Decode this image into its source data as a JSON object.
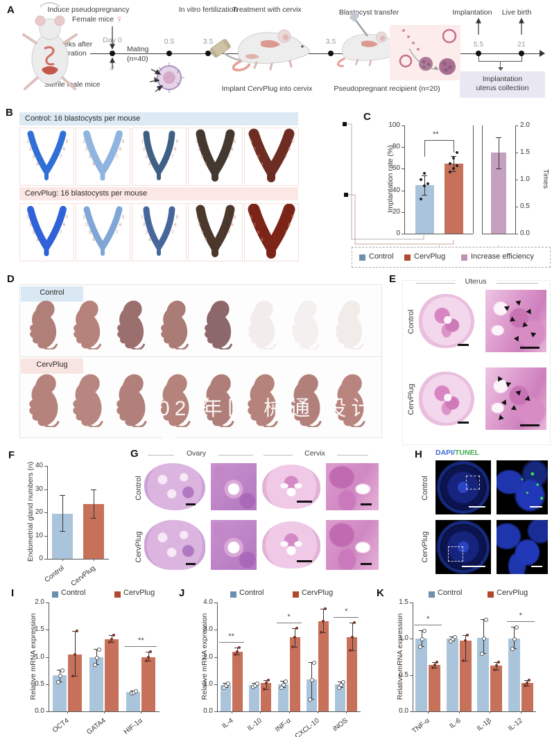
{
  "panels": {
    "A": "A",
    "B": "B",
    "C": "C",
    "D": "D",
    "E": "E",
    "F": "F",
    "G": "G",
    "H": "H",
    "I": "I",
    "J": "J",
    "K": "K"
  },
  "colors": {
    "control_bar": "#aac5db",
    "cervplug_bar": "#c8715a",
    "increase_bar": "#c6a0bf",
    "control_marker": "#6d8fae",
    "cervplug_marker": "#b0482e",
    "increase_marker": "#bd93b4",
    "header_blue": "#ddeaf3",
    "header_pink": "#fbe7e3",
    "dapi_blue": "#3f6ad1",
    "tunel_green": "#3cae4e"
  },
  "panelA": {
    "stages": {
      "s1": "Induce pseudopregnancy",
      "s2": "In vitro fertilization",
      "s3": "Treatment with cervix",
      "s4": "Blastocyst transfer",
      "s5": "Implantation",
      "s6": "Live birth"
    },
    "timeline": {
      "day0": "Day 0",
      "t1": "0.5",
      "t2": "3.5",
      "t3": "3.5",
      "t4": "5.5",
      "t5": "21"
    },
    "labels": {
      "female_mice": "Female mice",
      "female_symbol": "♀",
      "castration_l1": "2 weeks after",
      "castration_l2": "castration",
      "male_symbol": "♂",
      "sterile": "Sterile male mice",
      "mating_l1": "Mating",
      "mating_l2": "(n=40)",
      "implant": "Implant CervPlug into cervix",
      "recipient": "Pseudopregnant recipient (n=20)",
      "collection_l1": "Implantation",
      "collection_l2": "uterus collection"
    }
  },
  "panelB": {
    "control_header": "Control: 16 blastocysts per mouse",
    "cervplug_header": "CervPlug: 16 blastocysts per mouse",
    "uterus_colors_control": [
      "#2f6fd6",
      "#8fb4e0",
      "#3f5f84",
      "#433931",
      "#6e2d22"
    ],
    "uterus_colors_cervplug": [
      "#2f62d8",
      "#7fa6d6",
      "#47679c",
      "#4a382c",
      "#7c2418"
    ]
  },
  "panelD": {
    "control_label": "Control",
    "cervplug_label": "CervPlug",
    "pup_colors_control": [
      "#b08078",
      "#b5837b",
      "#9a6f6d",
      "#ab7b75",
      "#8d686a",
      "#f2edec",
      "#f4f0ef",
      "#f1ecea"
    ],
    "pup_colors_cervplug": [
      "#b5837c",
      "#b88680",
      "#b2807a",
      "#b5837c",
      "#b07e78",
      "#b5837c",
      "#b2807a",
      "#b8847d"
    ],
    "watermark": "02 年医 械通 设计 三"
  },
  "panelE": {
    "title": "Uterus",
    "row1": "Control",
    "row2": "CervPlug"
  },
  "panelG": {
    "col1": "Ovary",
    "col2": "Cervix",
    "row1": "Control",
    "row2": "CervPlug"
  },
  "panelH": {
    "title_dapi": "DAPI",
    "title_slash": "/",
    "title_tunel": "TUNEL",
    "row1": "Control",
    "row2": "CervPlug"
  },
  "chart_data": [
    {
      "id": "C",
      "type": "bar",
      "ylabel": "Implantation rate (%)",
      "ylim": [
        0,
        100
      ],
      "yticks": [
        "0",
        "20",
        "40",
        "60",
        "80",
        "100"
      ],
      "categories": [
        "Control",
        "CervPlug"
      ],
      "values": [
        45,
        65
      ],
      "err_low": [
        36,
        58
      ],
      "err_high": [
        54,
        72
      ],
      "points": [
        [
          32,
          44,
          46,
          50,
          56
        ],
        [
          57,
          60,
          63,
          65,
          70,
          75
        ]
      ],
      "significance": {
        "mark": "**"
      },
      "secondary": {
        "label": "Increase efficiency",
        "axis_label": "Times",
        "value": 1.5,
        "err_low": 1.2,
        "err_high": 1.78,
        "ylim": [
          0,
          2
        ],
        "yticks": [
          "0.0",
          "0.5",
          "1.0",
          "1.5",
          "2.0"
        ]
      },
      "legend": [
        "Control",
        "CervPlug",
        "Increase efficiency"
      ]
    },
    {
      "id": "F",
      "type": "bar",
      "ylabel": "Endometrial gland numbers (n)",
      "ylim": [
        0,
        40
      ],
      "yticks": [
        "0",
        "10",
        "20",
        "30",
        "40"
      ],
      "categories": [
        "Control",
        "CervPlug"
      ],
      "values": [
        19.5,
        23.5
      ],
      "err_low": [
        12,
        17.5
      ],
      "err_high": [
        27.5,
        30
      ]
    },
    {
      "id": "I",
      "type": "grouped_bar",
      "ylabel": "Relative mRNA expression",
      "ylim": [
        0,
        2
      ],
      "yticks": [
        "0.0",
        "0.5",
        "1.0",
        "1.5",
        "2.0"
      ],
      "categories": [
        "OCT4",
        "GATA4",
        "HIF-1α"
      ],
      "legend": [
        "Control",
        "CervPlug"
      ],
      "series": [
        {
          "name": "Control",
          "values": [
            0.66,
            1.0,
            0.36
          ],
          "err_low": [
            0.55,
            0.87,
            0.34
          ],
          "err_high": [
            0.77,
            1.15,
            0.38
          ]
        },
        {
          "name": "CervPlug",
          "values": [
            1.05,
            1.33,
            1.0
          ],
          "err_low": [
            0.65,
            1.27,
            0.93
          ],
          "err_high": [
            1.48,
            1.4,
            1.09
          ]
        }
      ],
      "significance": [
        {
          "category_index": 2,
          "mark": "**"
        }
      ]
    },
    {
      "id": "J",
      "type": "grouped_bar",
      "ylabel": "Relative mRNA expression",
      "ylim": [
        0,
        4
      ],
      "yticks": [
        "0.0",
        "1.0",
        "2.0",
        "3.0",
        "4.0"
      ],
      "categories": [
        "IL-4",
        "IL-10",
        "INF-α",
        "CXCL-10",
        "iNOS"
      ],
      "legend": [
        "Control",
        "CervPlug"
      ],
      "series": [
        {
          "name": "Control",
          "values": [
            0.97,
            0.98,
            1.0,
            1.17,
            1.0
          ],
          "err_low": [
            0.9,
            0.92,
            0.88,
            0.45,
            0.88
          ],
          "err_high": [
            1.05,
            1.04,
            1.12,
            1.8,
            1.1
          ]
        },
        {
          "name": "CervPlug",
          "values": [
            2.2,
            1.04,
            2.72,
            3.3,
            2.72
          ],
          "err_low": [
            2.1,
            0.82,
            2.38,
            2.9,
            2.25
          ],
          "err_high": [
            2.35,
            1.15,
            3.05,
            3.77,
            3.25
          ]
        }
      ],
      "significance": [
        {
          "category_index": 0,
          "mark": "**"
        },
        {
          "category_index": 2,
          "mark": "*"
        },
        {
          "category_index": 4,
          "mark": "*"
        }
      ]
    },
    {
      "id": "K",
      "type": "grouped_bar",
      "ylabel": "Relative mRNA expression",
      "ylim": [
        0,
        1.5
      ],
      "yticks": [
        "0.0",
        "0.5",
        "1.0",
        "1.5"
      ],
      "categories": [
        "TNF-α",
        "IL-6",
        "IL-1β",
        "IL-12"
      ],
      "legend": [
        "Control",
        "CervPlug"
      ],
      "series": [
        {
          "name": "Control",
          "values": [
            1.0,
            1.0,
            1.01,
            1.0
          ],
          "err_low": [
            0.9,
            0.97,
            0.8,
            0.87
          ],
          "err_high": [
            1.12,
            1.03,
            1.27,
            1.17
          ]
        },
        {
          "name": "CervPlug",
          "values": [
            0.64,
            0.97,
            0.63,
            0.39
          ],
          "err_low": [
            0.6,
            0.7,
            0.57,
            0.35
          ],
          "err_high": [
            0.68,
            1.05,
            0.68,
            0.43
          ]
        }
      ],
      "significance": [
        {
          "category_index": 0,
          "mark": "*"
        },
        {
          "category_index": 3,
          "mark": "*"
        }
      ]
    }
  ]
}
